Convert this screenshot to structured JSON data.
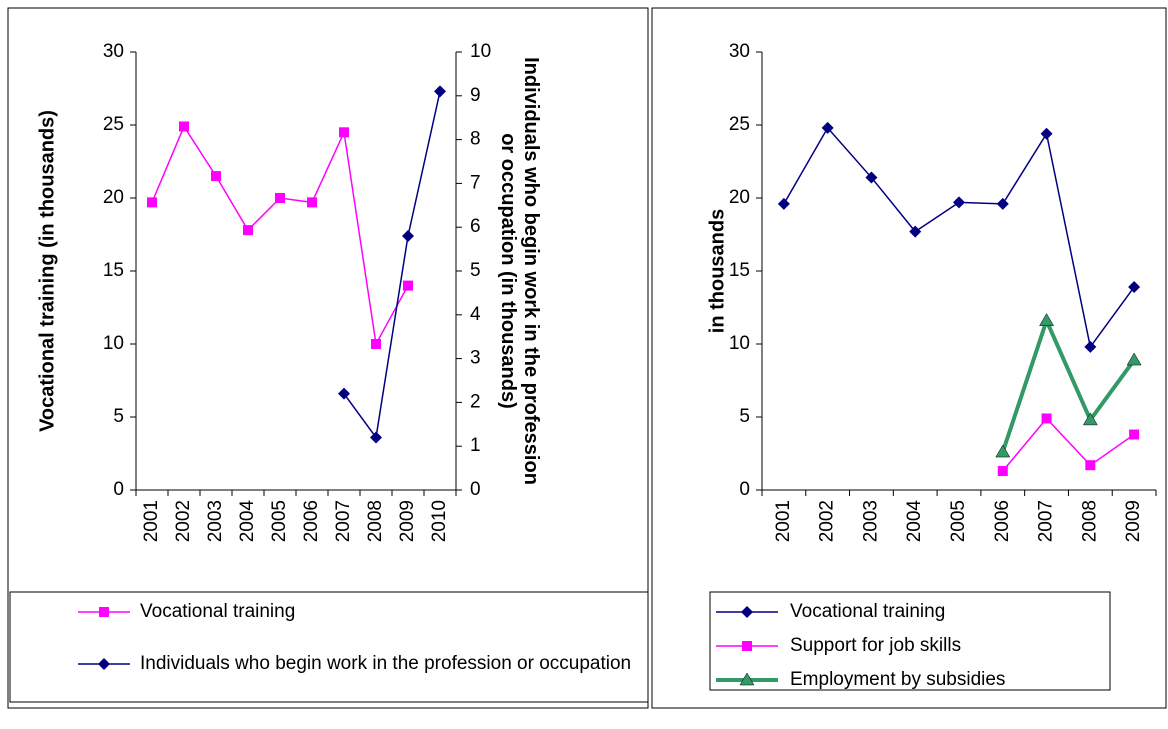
{
  "chart_data": [
    {
      "type": "line",
      "categories": [
        "2001",
        "2002",
        "2003",
        "2004",
        "2005",
        "2006",
        "2007",
        "2008",
        "2009",
        "2010"
      ],
      "ylabel": "Vocational training (in thousands)",
      "y2label": "Individuals who begin work in the profession or occupation (in thousands)",
      "ylim": [
        0,
        30
      ],
      "yticks": [
        0,
        5,
        10,
        15,
        20,
        25,
        30
      ],
      "y2lim": [
        0,
        10
      ],
      "y2ticks": [
        0,
        1,
        2,
        3,
        4,
        5,
        6,
        7,
        8,
        9,
        10
      ],
      "series": [
        {
          "name": "Vocational training",
          "color": "#ff00ff",
          "marker": "square",
          "values": [
            19.7,
            24.9,
            21.5,
            17.8,
            20.0,
            19.7,
            24.5,
            10.0,
            14.0,
            null
          ]
        },
        {
          "name": "Individuals who begin work in the profession or occupation",
          "color": "#000080",
          "marker": "diamond",
          "axis": "y2",
          "values": [
            null,
            null,
            null,
            null,
            null,
            null,
            2.2,
            1.2,
            5.8,
            9.1
          ]
        }
      ]
    },
    {
      "type": "line",
      "categories": [
        "2001",
        "2002",
        "2003",
        "2004",
        "2005",
        "2006",
        "2007",
        "2008",
        "2009"
      ],
      "ylabel": "in thousands",
      "ylim": [
        0,
        30
      ],
      "yticks": [
        0,
        5,
        10,
        15,
        20,
        25,
        30
      ],
      "series": [
        {
          "name": "Vocational training",
          "color": "#000080",
          "marker": "diamond",
          "values": [
            19.6,
            24.8,
            21.4,
            17.7,
            19.7,
            19.6,
            24.4,
            9.8,
            13.9
          ]
        },
        {
          "name": "Support for job skills",
          "color": "#ff00ff",
          "marker": "square",
          "values": [
            null,
            null,
            null,
            null,
            null,
            1.3,
            4.9,
            1.7,
            3.8
          ]
        },
        {
          "name": "Employment by subsidies",
          "color": "#339966",
          "marker": "triangle",
          "width": 4,
          "values": [
            null,
            null,
            null,
            null,
            null,
            2.6,
            11.6,
            4.8,
            8.9
          ]
        }
      ]
    }
  ]
}
